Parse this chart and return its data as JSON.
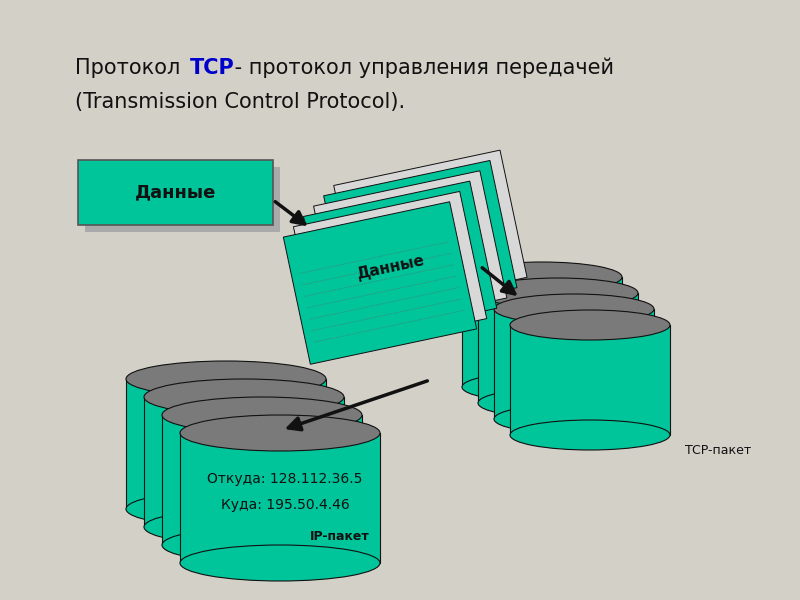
{
  "bg_color": "#d3d0c8",
  "teal_color": "#00c49a",
  "gray_top": "#7a7a7a",
  "tcp_blue": "#0000cc",
  "title_line1_pre": "Протокол ",
  "title_tcp": "TCP",
  "title_line1_post": " - протокол управления передачей",
  "title_line2": "(Transmission Control Protocol).",
  "data_box_label": "Данные",
  "packet_label": "Данные",
  "tcp_label": "TCP-пакет",
  "ip_label": "IP-пакет",
  "from_label": "Откуда: 128.112.36.5",
  "to_label": "Куда: 195.50.4.46"
}
